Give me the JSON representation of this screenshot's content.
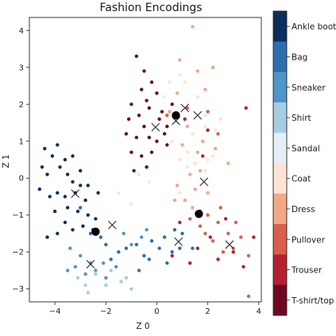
{
  "chart_data": {
    "type": "scatter",
    "title": "Fashion Encodings",
    "xlabel": "Z 0",
    "ylabel": "Z 1",
    "xlim": [
      -5.0,
      4.1
    ],
    "ylim": [
      -3.35,
      4.35
    ],
    "xticks": [
      -4,
      -2,
      0,
      2,
      4
    ],
    "yticks": [
      -3,
      -2,
      -1,
      0,
      1,
      2,
      3,
      4
    ],
    "grid": false,
    "colorbar": {
      "position": "right",
      "labels": [
        "Ankle boot",
        "Bag",
        "Sneaker",
        "Shirt",
        "Sandal",
        "Coat",
        "Dress",
        "Pullover",
        "Trouser",
        "T-shirt/top"
      ],
      "colors": [
        "#0a2f5c",
        "#2a6eb0",
        "#4f96c8",
        "#a4cde3",
        "#e3eef5",
        "#fbe3d6",
        "#f2a785",
        "#d85e4e",
        "#b3212f",
        "#6d0a22"
      ]
    },
    "series": [
      {
        "class_index": 0,
        "points": [
          [
            -4.4,
            0.8
          ],
          [
            -3.9,
            0.9
          ],
          [
            -4.1,
            0.6
          ],
          [
            -3.6,
            0.5
          ],
          [
            -3.3,
            0.6
          ],
          [
            -4.5,
            0.3
          ],
          [
            -4.3,
            0.1
          ],
          [
            -3.8,
            0.3
          ],
          [
            -3.5,
            0.1
          ],
          [
            -3.0,
            0.2
          ],
          [
            -3.3,
            -0.1
          ],
          [
            -3.0,
            -0.2
          ],
          [
            -2.7,
            -0.2
          ],
          [
            -2.3,
            -0.4
          ],
          [
            -4.6,
            -0.3
          ],
          [
            -4.2,
            -0.5
          ],
          [
            -3.9,
            -0.4
          ],
          [
            -3.6,
            -0.5
          ],
          [
            -3.2,
            -0.4
          ],
          [
            -2.8,
            -0.6
          ],
          [
            -3.5,
            -0.8
          ],
          [
            -3.1,
            -0.9
          ],
          [
            -2.7,
            -1.0
          ],
          [
            -2.4,
            -1.1
          ],
          [
            -4.0,
            -0.9
          ],
          [
            -3.6,
            -1.2
          ],
          [
            -3.3,
            -1.4
          ],
          [
            -2.9,
            -1.3
          ],
          [
            -2.5,
            -1.4
          ],
          [
            -4.3,
            -1.6
          ],
          [
            -3.9,
            -1.5
          ]
        ]
      },
      {
        "class_index": 1,
        "points": [
          [
            -3.0,
            -0.8
          ],
          [
            -2.6,
            -1.5
          ],
          [
            -2.2,
            -1.6
          ],
          [
            -2.0,
            -1.8
          ],
          [
            -1.5,
            -2.0
          ],
          [
            -1.2,
            -1.9
          ],
          [
            -0.8,
            -1.8
          ],
          [
            -0.5,
            -2.1
          ],
          [
            -0.2,
            -1.7
          ],
          [
            0.3,
            -1.6
          ],
          [
            0.6,
            -2.0
          ],
          [
            0.9,
            -1.9
          ],
          [
            -0.7,
            -2.5
          ],
          [
            -1.8,
            -2.2
          ],
          [
            0.1,
            -1.9
          ],
          [
            0.4,
            -2.3
          ],
          [
            -0.3,
            -2.2
          ],
          [
            1.0,
            -1.5
          ],
          [
            1.4,
            -1.9
          ],
          [
            0.7,
            -1.4
          ]
        ]
      },
      {
        "class_index": 2,
        "points": [
          [
            -3.4,
            -1.9
          ],
          [
            -3.0,
            -2.1
          ],
          [
            -2.6,
            -2.3
          ],
          [
            -3.2,
            -2.4
          ],
          [
            -2.8,
            -2.6
          ],
          [
            -2.4,
            -2.5
          ],
          [
            -2.0,
            -2.7
          ],
          [
            -3.5,
            -2.5
          ],
          [
            -1.6,
            -2.4
          ],
          [
            -2.1,
            -2.3
          ],
          [
            -1.0,
            -1.8
          ],
          [
            -0.6,
            -1.6
          ],
          [
            -0.4,
            -1.4
          ],
          [
            -1.3,
            -1.5
          ]
        ]
      },
      {
        "class_index": 3,
        "points": [
          [
            -2.8,
            -2.9
          ],
          [
            -1.8,
            -2.5
          ],
          [
            -1.4,
            -2.8
          ],
          [
            -1.0,
            -3.0
          ],
          [
            -2.4,
            -2.6
          ],
          [
            -2.0,
            -2.9
          ],
          [
            -2.7,
            -3.1
          ],
          [
            -3.1,
            -2.7
          ],
          [
            -1.2,
            -2.7
          ]
        ]
      },
      {
        "class_index": 4,
        "points": [
          [
            -1.5,
            -0.4
          ],
          [
            -1.0,
            -0.7
          ],
          [
            -0.7,
            0.1
          ],
          [
            0.5,
            2.6
          ],
          [
            0.9,
            2.8
          ],
          [
            0.3,
            2.2
          ],
          [
            0.9,
            -0.4
          ],
          [
            1.2,
            0.3
          ],
          [
            -0.3,
            -0.1
          ],
          [
            2.0,
            0.5
          ]
        ]
      },
      {
        "class_index": 5,
        "points": [
          [
            1.4,
            1.2
          ],
          [
            1.9,
            1.4
          ],
          [
            2.3,
            1.3
          ],
          [
            1.6,
            2.2
          ],
          [
            1.2,
            0.7
          ],
          [
            1.5,
            0.4
          ],
          [
            1.9,
            0.2
          ],
          [
            2.2,
            0.6
          ],
          [
            0.9,
            0.5
          ],
          [
            0.6,
            1.0
          ],
          [
            1.1,
            2.6
          ],
          [
            1.9,
            1.7
          ],
          [
            2.5,
            1.6
          ]
        ]
      },
      {
        "class_index": 6,
        "points": [
          [
            1.0,
            0.9
          ],
          [
            1.6,
            0.7
          ],
          [
            1.3,
            0.1
          ],
          [
            0.8,
            -0.2
          ],
          [
            1.1,
            -0.6
          ],
          [
            1.5,
            -0.3
          ],
          [
            1.7,
            0.2
          ],
          [
            2.0,
            -0.4
          ],
          [
            1.2,
            1.4
          ],
          [
            1.8,
            1.0
          ],
          [
            0.7,
            -0.6
          ],
          [
            1.4,
            -0.8
          ],
          [
            0.8,
            2.3
          ],
          [
            1.6,
            2.9
          ],
          [
            0.5,
            1.8
          ],
          [
            1.9,
            2.4
          ],
          [
            2.2,
            3.0
          ],
          [
            0.9,
            3.2
          ],
          [
            1.4,
            4.1
          ],
          [
            2.3,
            0.8
          ],
          [
            2.8,
            0.4
          ]
        ]
      },
      {
        "class_index": 7,
        "points": [
          [
            1.7,
            -1.3
          ],
          [
            2.0,
            -1.0
          ],
          [
            2.4,
            -1.2
          ],
          [
            2.8,
            -1.5
          ],
          [
            2.2,
            -1.7
          ],
          [
            2.6,
            -2.0
          ],
          [
            3.0,
            -1.9
          ],
          [
            3.3,
            -1.6
          ],
          [
            1.9,
            -1.5
          ],
          [
            1.3,
            -1.1
          ],
          [
            2.5,
            -0.8
          ],
          [
            3.1,
            -1.2
          ],
          [
            3.6,
            -2.1
          ],
          [
            2.4,
            1.2
          ],
          [
            2.0,
            1.8
          ],
          [
            1.2,
            1.9
          ],
          [
            0.4,
            1.7
          ],
          [
            3.6,
            -3.2
          ]
        ]
      },
      {
        "class_index": 8,
        "points": [
          [
            1.3,
            -2.3
          ],
          [
            1.6,
            -1.9
          ],
          [
            2.1,
            -1.6
          ],
          [
            2.4,
            -2.2
          ],
          [
            3.0,
            -2.0
          ],
          [
            3.4,
            -2.4
          ],
          [
            3.8,
            -1.6
          ],
          [
            2.7,
            -1.1
          ],
          [
            1.7,
            -0.9
          ],
          [
            0.9,
            -1.2
          ],
          [
            0.6,
            -2.1
          ],
          [
            2.0,
            1.3
          ],
          [
            3.5,
            1.9
          ],
          [
            1.1,
            1.6
          ],
          [
            1.8,
            0.6
          ]
        ]
      },
      {
        "class_index": 9,
        "points": [
          [
            -0.8,
            3.3
          ],
          [
            -0.5,
            2.9
          ],
          [
            -0.2,
            2.6
          ],
          [
            -0.6,
            2.4
          ],
          [
            -1.0,
            2.0
          ],
          [
            -0.7,
            1.7
          ],
          [
            -0.3,
            1.9
          ],
          [
            0.1,
            1.6
          ],
          [
            0.4,
            1.4
          ],
          [
            -0.5,
            1.4
          ],
          [
            -1.2,
            1.2
          ],
          [
            -0.8,
            1.1
          ],
          [
            -0.3,
            1.1
          ],
          [
            0.0,
            1.0
          ],
          [
            0.4,
            0.9
          ],
          [
            -1.0,
            0.7
          ],
          [
            -0.6,
            0.6
          ],
          [
            -0.2,
            0.7
          ],
          [
            0.3,
            1.2
          ],
          [
            -0.4,
            0.3
          ],
          [
            -0.9,
            0.2
          ],
          [
            0.6,
            2.0
          ],
          [
            0.2,
            1.8
          ],
          [
            -0.4,
            2.1
          ],
          [
            -1.1,
            1.6
          ],
          [
            0.0,
            2.3
          ]
        ]
      }
    ],
    "centroids": [
      [
        0.75,
        1.7
      ],
      [
        -2.4,
        -1.45
      ],
      [
        1.65,
        -0.97
      ]
    ],
    "cross_markers": [
      [
        1.1,
        1.9
      ],
      [
        1.6,
        1.7
      ],
      [
        0.75,
        1.55
      ],
      [
        -0.05,
        1.38
      ],
      [
        -3.2,
        -0.42
      ],
      [
        1.85,
        -0.1
      ],
      [
        -1.75,
        -1.27
      ],
      [
        0.85,
        -1.72
      ],
      [
        2.85,
        -1.8
      ],
      [
        -2.6,
        -2.33
      ]
    ]
  }
}
